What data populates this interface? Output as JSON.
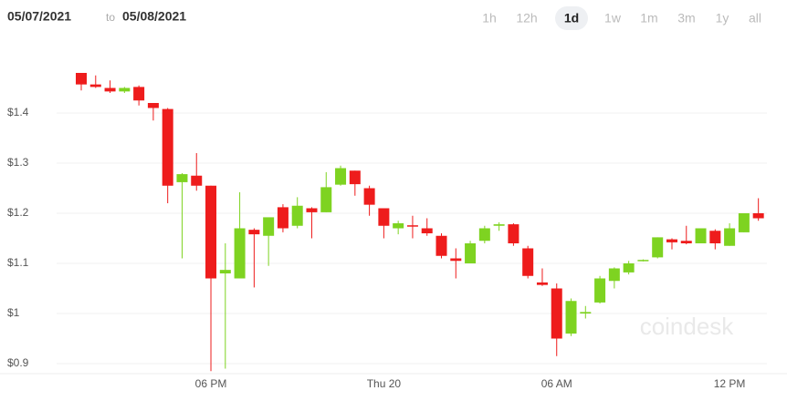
{
  "header": {
    "date_from": "05/07/2021",
    "separator": "to",
    "date_to": "05/08/2021",
    "ranges": [
      "1h",
      "12h",
      "1d",
      "1w",
      "1m",
      "3m",
      "1y",
      "all"
    ],
    "selected_range": 2
  },
  "chart_data": {
    "type": "candlestick",
    "watermark": "coindesk",
    "categories": [
      null,
      null,
      null,
      null,
      null,
      null,
      null,
      null,
      null,
      "06 PM",
      null,
      null,
      null,
      null,
      null,
      null,
      null,
      null,
      null,
      null,
      null,
      "Thu 20",
      null,
      null,
      null,
      null,
      null,
      null,
      null,
      null,
      null,
      null,
      null,
      "06 AM",
      null,
      null,
      null,
      null,
      null,
      null,
      null,
      null,
      null,
      null,
      null,
      "12 PM",
      null,
      null
    ],
    "open": [
      1.48,
      1.457,
      1.45,
      1.443,
      1.452,
      1.42,
      1.408,
      1.262,
      1.275,
      1.255,
      1.08,
      1.07,
      1.167,
      1.155,
      1.212,
      1.175,
      1.21,
      1.202,
      1.257,
      1.285,
      1.25,
      1.21,
      1.17,
      1.176,
      1.17,
      1.155,
      1.11,
      1.1,
      1.145,
      1.175,
      1.178,
      1.13,
      1.062,
      1.05,
      0.96,
      1.0,
      1.022,
      1.065,
      1.082,
      1.105,
      1.112,
      1.148,
      1.145,
      1.14,
      1.165,
      1.135,
      1.162,
      1.2
    ],
    "high": [
      1.48,
      1.475,
      1.465,
      1.452,
      1.455,
      1.42,
      1.41,
      1.28,
      1.32,
      1.255,
      1.14,
      1.242,
      1.17,
      1.19,
      1.218,
      1.232,
      1.212,
      1.282,
      1.295,
      1.285,
      1.255,
      1.21,
      1.185,
      1.195,
      1.19,
      1.16,
      1.13,
      1.145,
      1.175,
      1.182,
      1.18,
      1.135,
      1.09,
      1.06,
      1.03,
      1.015,
      1.075,
      1.092,
      1.105,
      1.108,
      1.152,
      1.15,
      1.175,
      1.17,
      1.168,
      1.18,
      1.2,
      1.23
    ],
    "low": [
      1.445,
      1.45,
      1.44,
      1.44,
      1.415,
      1.385,
      1.22,
      1.11,
      1.245,
      0.885,
      0.89,
      1.07,
      1.052,
      1.095,
      1.162,
      1.17,
      1.15,
      1.202,
      1.255,
      1.235,
      1.195,
      1.15,
      1.158,
      1.15,
      1.155,
      1.11,
      1.07,
      1.1,
      1.14,
      1.165,
      1.135,
      1.07,
      1.055,
      0.915,
      0.955,
      0.99,
      1.02,
      1.05,
      1.078,
      1.104,
      1.11,
      1.128,
      1.138,
      1.14,
      1.128,
      1.135,
      1.162,
      1.185
    ],
    "close": [
      1.457,
      1.452,
      1.443,
      1.45,
      1.425,
      1.41,
      1.255,
      1.278,
      1.255,
      1.07,
      1.087,
      1.17,
      1.158,
      1.192,
      1.17,
      1.215,
      1.202,
      1.252,
      1.29,
      1.258,
      1.217,
      1.175,
      1.18,
      1.174,
      1.16,
      1.115,
      1.105,
      1.14,
      1.17,
      1.178,
      1.14,
      1.075,
      1.057,
      0.95,
      1.025,
      1.003,
      1.07,
      1.09,
      1.1,
      1.107,
      1.152,
      1.142,
      1.14,
      1.17,
      1.14,
      1.17,
      1.2,
      1.19
    ],
    "up_color": "#7ed321",
    "down_color": "#ee1c1c",
    "ylim": [
      0.88,
      1.52
    ],
    "yticks": [
      {
        "value": 0.9,
        "label": "$0.9"
      },
      {
        "value": 1,
        "label": "$1"
      },
      {
        "value": 1.1,
        "label": "$1.1"
      },
      {
        "value": 1.2,
        "label": "$1.2"
      },
      {
        "value": 1.3,
        "label": "$1.3"
      },
      {
        "value": 1.4,
        "label": "$1.4"
      }
    ],
    "grid": true
  }
}
